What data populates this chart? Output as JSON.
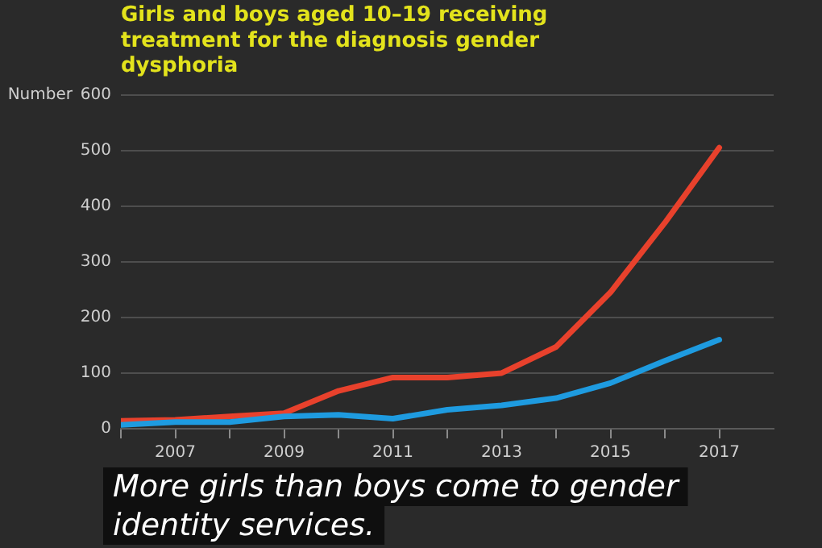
{
  "chart_data": {
    "type": "line",
    "title": "Girls and boys aged 10–19 receiving treatment for the diagnosis gender dysphoria",
    "ylabel": "Number",
    "x": [
      2006,
      2007,
      2008,
      2009,
      2010,
      2011,
      2012,
      2013,
      2014,
      2015,
      2016,
      2017
    ],
    "series": [
      {
        "color": "#1e9be0",
        "values": [
          7,
          12,
          12,
          22,
          25,
          18,
          34,
          42,
          55,
          82,
          122,
          160
        ]
      },
      {
        "color": "#e8412c",
        "values": [
          14,
          16,
          22,
          28,
          68,
          92,
          92,
          100,
          147,
          245,
          370,
          505
        ]
      }
    ],
    "xlim": [
      2006,
      2018
    ],
    "xticks": [
      {
        "value": 2006,
        "label": null
      },
      2007,
      {
        "value": 2008,
        "label": null
      },
      2009,
      {
        "value": 2010,
        "label": null
      },
      2011,
      {
        "value": 2012,
        "label": null
      },
      2013,
      {
        "value": 2014,
        "label": null
      },
      2015,
      {
        "value": 2016,
        "label": null
      },
      2017
    ],
    "ylim": [
      0,
      600
    ],
    "yticks": [
      0,
      100,
      200,
      300,
      400,
      500,
      600
    ],
    "grid": "y",
    "legend": false,
    "marker": "none",
    "line_style": "solid",
    "annotations": [
      "More girls than boys come to gender identity services."
    ]
  }
}
